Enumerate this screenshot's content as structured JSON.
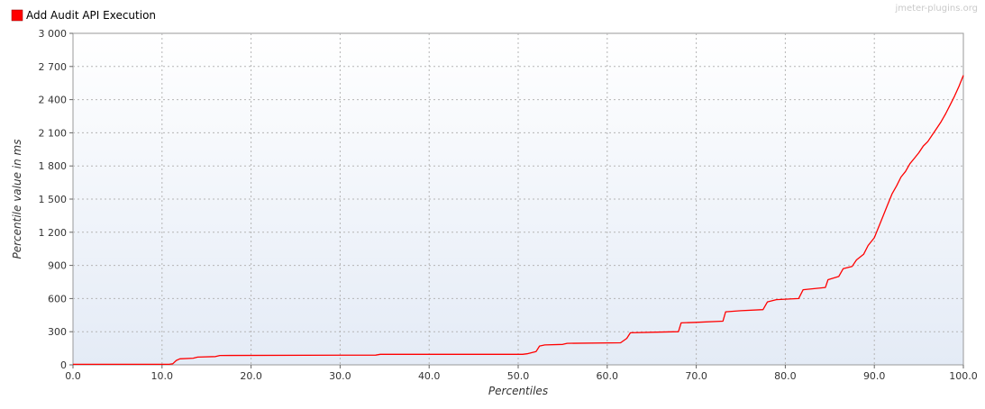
{
  "watermark": "jmeter-plugins.org",
  "chart_data": {
    "type": "line",
    "title": "",
    "xlabel": "Percentiles",
    "ylabel": "Percentile value in ms",
    "xlim": [
      0,
      100
    ],
    "ylim": [
      0,
      3000
    ],
    "x_ticks": [
      "0.0",
      "10.0",
      "20.0",
      "30.0",
      "40.0",
      "50.0",
      "60.0",
      "70.0",
      "80.0",
      "90.0",
      "100.0"
    ],
    "y_ticks": [
      "0",
      "300",
      "600",
      "900",
      "1 200",
      "1 500",
      "1 800",
      "2 100",
      "2 400",
      "2 700",
      "3 000"
    ],
    "grid": true,
    "legend_position": "top-left",
    "series": [
      {
        "name": "Add Audit API Execution",
        "color": "#ff0000",
        "points": [
          [
            0,
            5
          ],
          [
            10.8,
            5
          ],
          [
            11.2,
            10
          ],
          [
            11.6,
            40
          ],
          [
            12.0,
            55
          ],
          [
            13.5,
            60
          ],
          [
            14.0,
            70
          ],
          [
            16.0,
            75
          ],
          [
            16.5,
            85
          ],
          [
            34.0,
            88
          ],
          [
            34.5,
            95
          ],
          [
            50.5,
            95
          ],
          [
            51.0,
            100
          ],
          [
            52.0,
            120
          ],
          [
            52.4,
            170
          ],
          [
            53.0,
            180
          ],
          [
            55.0,
            185
          ],
          [
            55.5,
            195
          ],
          [
            61.5,
            200
          ],
          [
            62.2,
            240
          ],
          [
            62.6,
            290
          ],
          [
            65.0,
            295
          ],
          [
            68.0,
            300
          ],
          [
            68.3,
            380
          ],
          [
            70.0,
            385
          ],
          [
            73.0,
            395
          ],
          [
            73.3,
            480
          ],
          [
            75.0,
            490
          ],
          [
            77.5,
            500
          ],
          [
            78.0,
            570
          ],
          [
            79.0,
            590
          ],
          [
            81.5,
            600
          ],
          [
            82.0,
            680
          ],
          [
            84.5,
            700
          ],
          [
            84.8,
            770
          ],
          [
            86.0,
            800
          ],
          [
            86.5,
            870
          ],
          [
            87.5,
            890
          ],
          [
            88.0,
            950
          ],
          [
            88.8,
            1000
          ],
          [
            89.3,
            1080
          ],
          [
            90.0,
            1150
          ],
          [
            90.5,
            1250
          ],
          [
            91.0,
            1350
          ],
          [
            91.5,
            1450
          ],
          [
            92.0,
            1550
          ],
          [
            92.5,
            1620
          ],
          [
            93.0,
            1700
          ],
          [
            93.5,
            1750
          ],
          [
            94.0,
            1820
          ],
          [
            94.5,
            1870
          ],
          [
            95.0,
            1920
          ],
          [
            95.5,
            1980
          ],
          [
            96.0,
            2020
          ],
          [
            96.5,
            2080
          ],
          [
            97.0,
            2140
          ],
          [
            97.5,
            2200
          ],
          [
            98.0,
            2270
          ],
          [
            98.5,
            2350
          ],
          [
            99.0,
            2430
          ],
          [
            99.5,
            2520
          ],
          [
            100.0,
            2620
          ]
        ]
      }
    ]
  }
}
